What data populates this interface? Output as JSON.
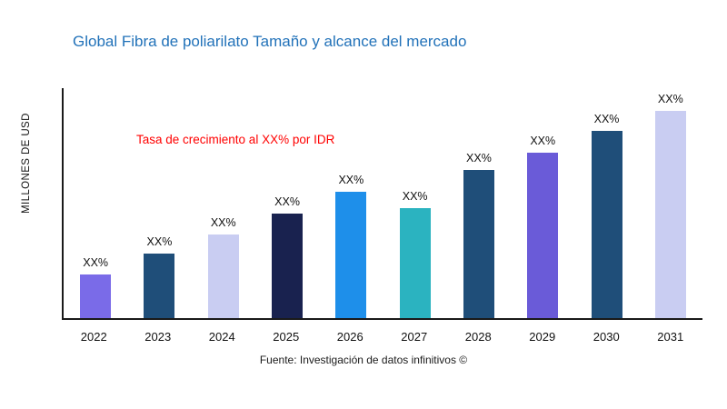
{
  "header": {
    "title": "Global Fibra de poliarilato Tamaño y alcance del mercado",
    "title_color": "#2272b9"
  },
  "annotation": {
    "text": "Tasa de crecimiento al XX% por IDR",
    "color": "#ff0000"
  },
  "footer": {
    "source": "Fuente: Investigación de datos infinitivos ©"
  },
  "chart_data": {
    "type": "bar",
    "title": "Global Fibra de poliarilato Tamaño y alcance del mercado",
    "xlabel": "",
    "ylabel": "MILLONES DE USD",
    "categories": [
      "2022",
      "2023",
      "2024",
      "2025",
      "2026",
      "2027",
      "2028",
      "2029",
      "2030",
      "2031"
    ],
    "values_pct_of_plot_height": [
      19,
      28,
      36.5,
      45.5,
      55,
      48,
      64.5,
      72,
      81.5,
      90
    ],
    "bar_labels": [
      "XX%",
      "XX%",
      "XX%",
      "XX%",
      "XX%",
      "XX%",
      "XX%",
      "XX%",
      "XX%",
      "XX%"
    ],
    "bar_colors": [
      "#7a6be8",
      "#1f4e79",
      "#c9cdf2",
      "#19224f",
      "#1e8fea",
      "#2bb3c0",
      "#1f4e79",
      "#6a5bd8",
      "#1f4e79",
      "#c9cdf2"
    ],
    "annotation": "Tasa de crecimiento al XX% por IDR",
    "ylim": null,
    "grid": false,
    "legend": false,
    "note": "Y axis has no numeric tick labels; bar values shown as XX% placeholders, heights are relative."
  }
}
